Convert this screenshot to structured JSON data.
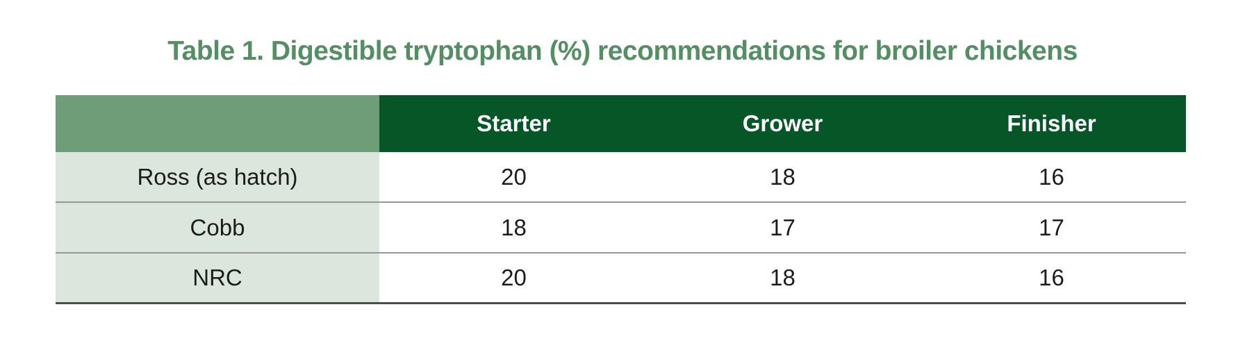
{
  "colors": {
    "page_bg": "#ffffff",
    "title_green": "#548e63",
    "header_bg": "#065628",
    "header_text": "#ffffff",
    "corner_bg": "#6f9d77",
    "row_label_bg": "#dbe7dd",
    "row_divider": "#979797",
    "table_bottom_border": "#4c4c4c",
    "body_text": "#1c1c1c"
  },
  "chart_data": {
    "type": "table",
    "title": "Table 1. Digestible tryptophan (%) recommendations for broiler chickens",
    "columns": [
      "",
      "Starter",
      "Grower",
      "Finisher"
    ],
    "rows": [
      [
        "Ross (as hatch)",
        20,
        18,
        16
      ],
      [
        "Cobb",
        18,
        17,
        17
      ],
      [
        "NRC",
        20,
        18,
        16
      ]
    ]
  }
}
